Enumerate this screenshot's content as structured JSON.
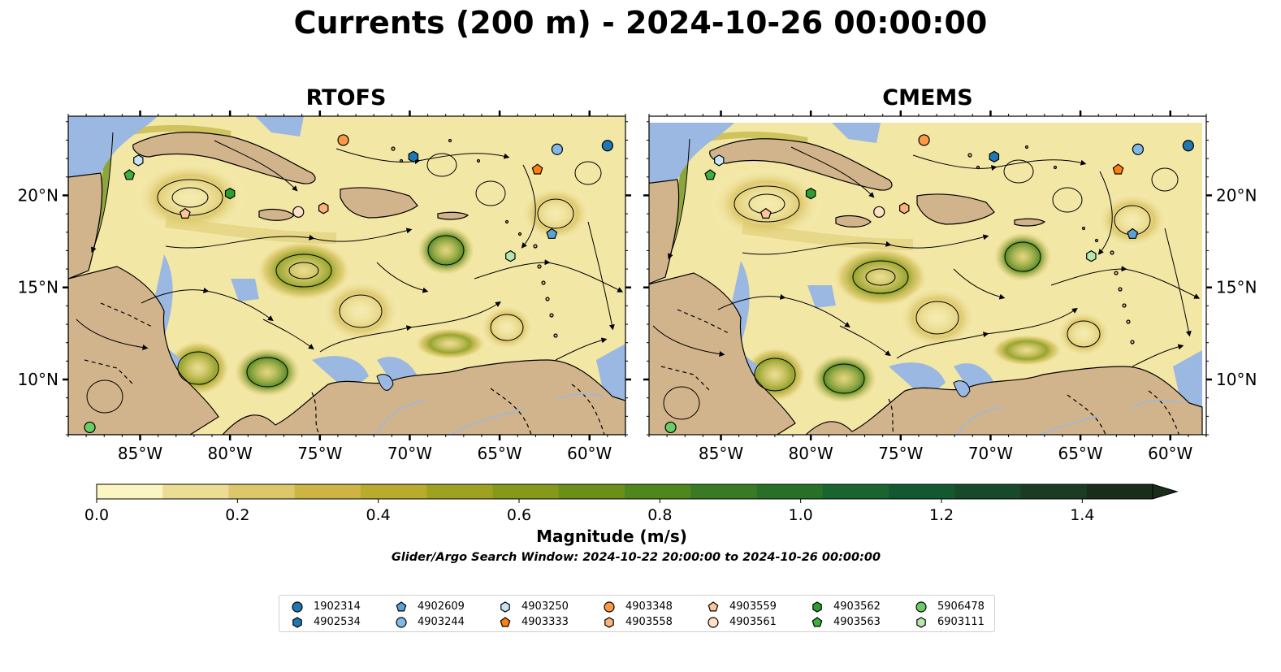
{
  "title": "Currents (200 m) - 2024-10-26 00:00:00",
  "panels": [
    {
      "title": "RTOFS"
    },
    {
      "title": "CMEMS"
    }
  ],
  "axes": {
    "longitude_labels": [
      "85°W",
      "80°W",
      "75°W",
      "70°W",
      "65°W",
      "60°W"
    ],
    "longitude_values": [
      -85,
      -80,
      -75,
      -70,
      -65,
      -60
    ],
    "latitude_labels": [
      "20°N",
      "15°N",
      "10°N"
    ],
    "latitude_values": [
      20,
      15,
      10
    ],
    "lon_range": [
      -89,
      -58
    ],
    "lat_range": [
      7,
      24.3
    ]
  },
  "colors": {
    "land": "#d2b48c",
    "water": "#9ab8e1",
    "streamline": "#000000"
  },
  "colorbar": {
    "label": "Magnitude (m/s)",
    "ticks": [
      "0.0",
      "0.2",
      "0.4",
      "0.6",
      "0.8",
      "1.0",
      "1.2",
      "1.4"
    ],
    "tick_values": [
      0.0,
      0.2,
      0.4,
      0.6,
      0.8,
      1.0,
      1.2,
      1.4
    ],
    "range": [
      0.0,
      1.5
    ],
    "extend": "max",
    "colors": [
      "#fbf5c2",
      "#ecdd94",
      "#dcc76a",
      "#cdb444",
      "#b8ab2d",
      "#9fa221",
      "#86991a",
      "#6b9018",
      "#4f861d",
      "#3a7a24",
      "#287028",
      "#1a6430",
      "#135830",
      "#174a2a",
      "#1b3c22",
      "#1a2d1a"
    ]
  },
  "subtitle": "Glider/Argo Search Window: 2024-10-22 20:00:00 to 2024-10-26 00:00:00",
  "legend": [
    {
      "id": "1902314",
      "color": "#1f77b4",
      "shape": "circle"
    },
    {
      "id": "4902534",
      "color": "#1f77b4",
      "shape": "hexagon"
    },
    {
      "id": "4902609",
      "color": "#5ba3d6",
      "shape": "pentagon"
    },
    {
      "id": "4903244",
      "color": "#7fb9e6",
      "shape": "circle"
    },
    {
      "id": "4903250",
      "color": "#c6e3f7",
      "shape": "hexagon"
    },
    {
      "id": "4903333",
      "color": "#ff7f0e",
      "shape": "pentagon"
    },
    {
      "id": "4903348",
      "color": "#fd9846",
      "shape": "circle"
    },
    {
      "id": "4903558",
      "color": "#fdb27a",
      "shape": "hexagon"
    },
    {
      "id": "4903559",
      "color": "#fdc69a",
      "shape": "pentagon"
    },
    {
      "id": "4903561",
      "color": "#fee0c4",
      "shape": "circle"
    },
    {
      "id": "4903562",
      "color": "#2ca02c",
      "shape": "hexagon"
    },
    {
      "id": "4903563",
      "color": "#3fb03f",
      "shape": "pentagon"
    },
    {
      "id": "5906478",
      "color": "#6acc64",
      "shape": "circle"
    },
    {
      "id": "6903111",
      "color": "#b4e8b0",
      "shape": "hexagon"
    }
  ],
  "markers": {
    "RTOFS": [
      {
        "id": "5906478",
        "lon": -87.8,
        "lat": 7.4
      },
      {
        "id": "4903250",
        "lon": -85.1,
        "lat": 21.9
      },
      {
        "id": "4903563",
        "lon": -85.6,
        "lat": 21.1
      },
      {
        "id": "4903559",
        "lon": -82.5,
        "lat": 19.0
      },
      {
        "id": "4903562",
        "lon": -80.0,
        "lat": 20.1
      },
      {
        "id": "4903561",
        "lon": -76.2,
        "lat": 19.1
      },
      {
        "id": "4903558",
        "lon": -74.8,
        "lat": 19.3
      },
      {
        "id": "4903348",
        "lon": -73.7,
        "lat": 23.0
      },
      {
        "id": "4902534",
        "lon": -69.8,
        "lat": 22.1
      },
      {
        "id": "4903244",
        "lon": -61.8,
        "lat": 22.5
      },
      {
        "id": "4903333",
        "lon": -62.9,
        "lat": 21.4
      },
      {
        "id": "1902314",
        "lon": -59.0,
        "lat": 22.7
      },
      {
        "id": "4902609",
        "lon": -62.1,
        "lat": 17.9
      },
      {
        "id": "6903111",
        "lon": -64.4,
        "lat": 16.7
      }
    ],
    "CMEMS": [
      {
        "id": "5906478",
        "lon": -87.8,
        "lat": 7.4
      },
      {
        "id": "4903250",
        "lon": -85.1,
        "lat": 21.9
      },
      {
        "id": "4903563",
        "lon": -85.6,
        "lat": 21.1
      },
      {
        "id": "4903559",
        "lon": -82.5,
        "lat": 19.0
      },
      {
        "id": "4903562",
        "lon": -80.0,
        "lat": 20.1
      },
      {
        "id": "4903561",
        "lon": -76.2,
        "lat": 19.1
      },
      {
        "id": "4903558",
        "lon": -74.8,
        "lat": 19.3
      },
      {
        "id": "4903348",
        "lon": -73.7,
        "lat": 23.0
      },
      {
        "id": "4902534",
        "lon": -69.8,
        "lat": 22.1
      },
      {
        "id": "4903244",
        "lon": -61.8,
        "lat": 22.5
      },
      {
        "id": "4903333",
        "lon": -62.9,
        "lat": 21.4
      },
      {
        "id": "1902314",
        "lon": -59.0,
        "lat": 22.7
      },
      {
        "id": "4902609",
        "lon": -62.1,
        "lat": 17.9
      },
      {
        "id": "6903111",
        "lon": -64.4,
        "lat": 16.7
      }
    ]
  }
}
